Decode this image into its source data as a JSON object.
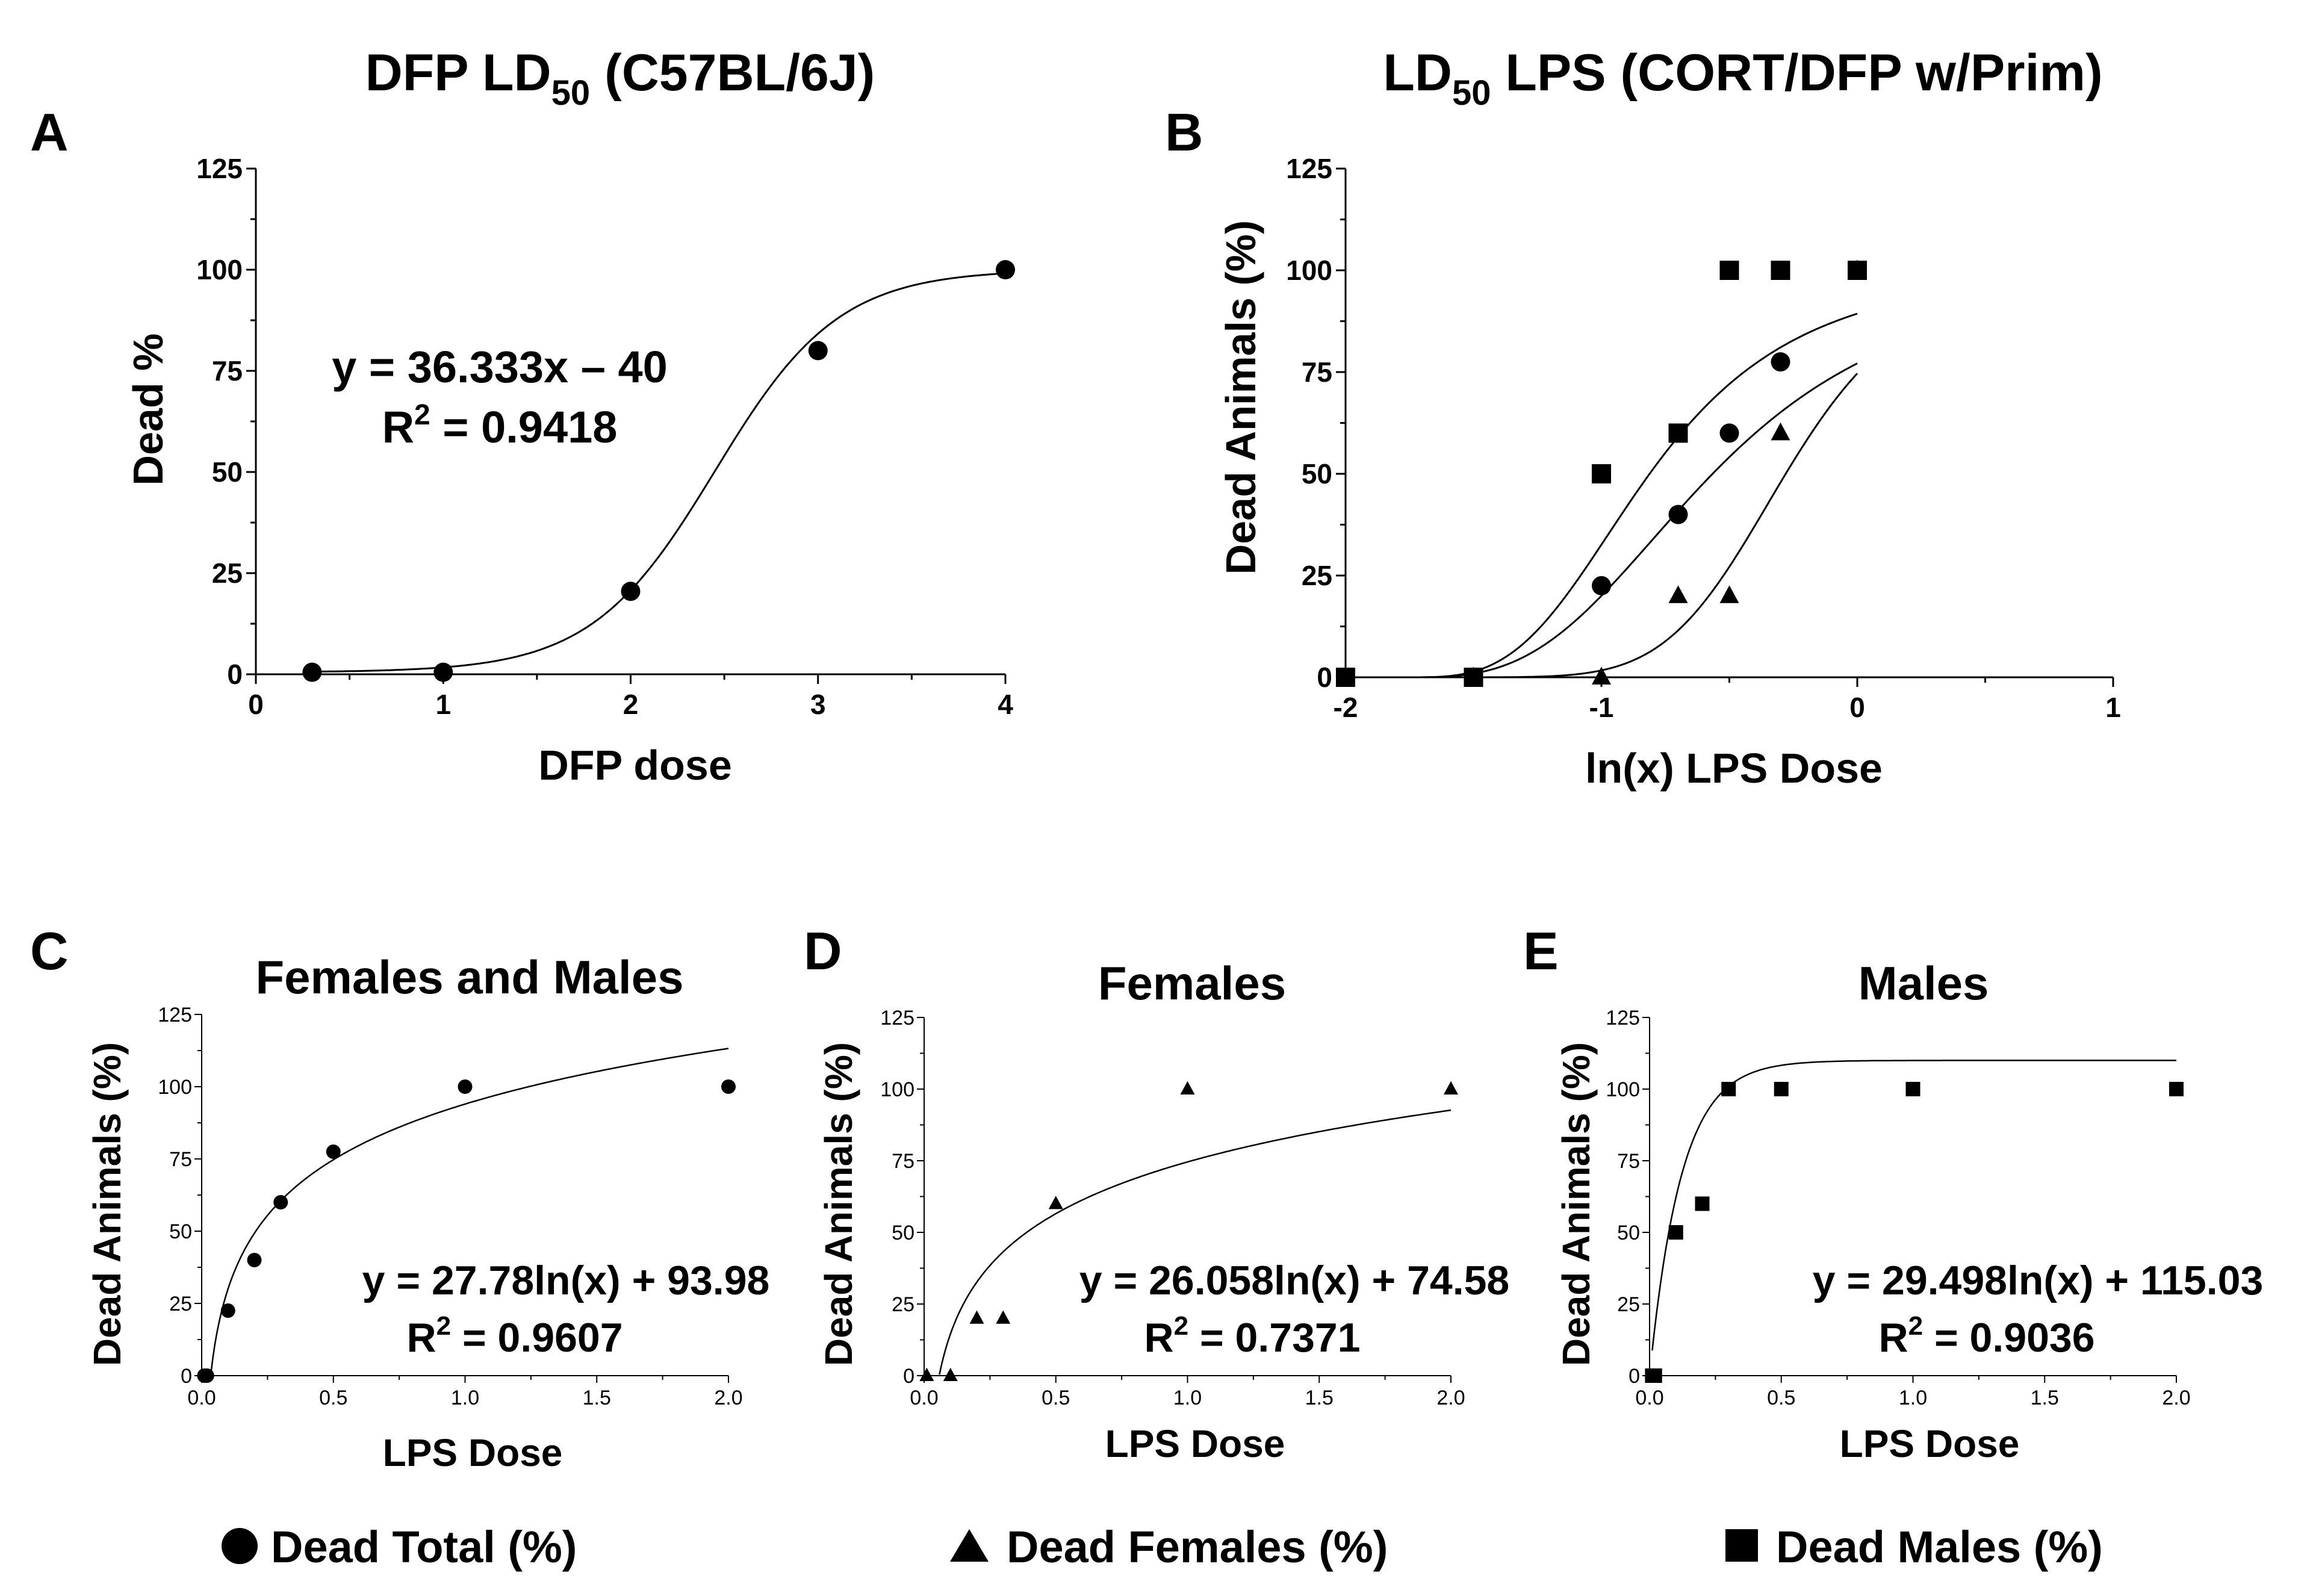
{
  "legend": [
    {
      "marker": "circle",
      "label": "Dead Total (%)"
    },
    {
      "marker": "triangle",
      "label": "Dead Females (%)"
    },
    {
      "marker": "square",
      "label": "Dead Males (%)"
    }
  ],
  "chart_data": [
    {
      "id": "A",
      "panel_letter": "A",
      "type": "scatter",
      "title_main": "DFP LD",
      "title_sub": "50",
      "title_rest": " (C57BL/6J)",
      "xlabel": "DFP dose",
      "ylabel": "Dead %",
      "xlim": [
        0,
        4
      ],
      "ylim": [
        0,
        125
      ],
      "xticks": [
        "0",
        "1",
        "2",
        "3",
        "4"
      ],
      "yticks": [
        "0",
        "25",
        "50",
        "75",
        "100",
        "125"
      ],
      "equation": "y = 36.333x – 40",
      "r2_label": "R",
      "r2_value": " = 0.9418",
      "series": [
        {
          "marker": "circle",
          "x": [
            0.3,
            1,
            2,
            3,
            4
          ],
          "y": [
            0.5,
            0.5,
            20.5,
            80,
            100
          ]
        }
      ]
    },
    {
      "id": "B",
      "panel_letter": "B",
      "type": "scatter",
      "title_main": "LD",
      "title_sub": "50",
      "title_rest": " LPS (CORT/DFP w/Prim)",
      "xlabel": "ln(x) LPS Dose",
      "ylabel": "Dead Animals (%)",
      "xlim": [
        -2,
        1
      ],
      "ylim": [
        0,
        125
      ],
      "xticks": [
        "-2",
        "-1",
        "0",
        "1"
      ],
      "yticks": [
        "0",
        "25",
        "50",
        "75",
        "100",
        "125"
      ],
      "series": [
        {
          "marker": "square",
          "x": [
            -2,
            -1.5,
            -1,
            -0.7,
            -0.5,
            -0.3,
            0
          ],
          "y": [
            0,
            0,
            50,
            60,
            100,
            100,
            100
          ]
        },
        {
          "marker": "circle",
          "x": [
            -2,
            -1.5,
            -1,
            -0.7,
            -0.5,
            -0.3,
            0
          ],
          "y": [
            0,
            0,
            22.5,
            40,
            60,
            77.5,
            100
          ]
        },
        {
          "marker": "triangle",
          "x": [
            -2,
            -1.5,
            -1,
            -0.7,
            -0.5,
            -0.3,
            0
          ],
          "y": [
            0,
            0,
            0,
            20,
            20,
            60,
            100
          ]
        }
      ]
    },
    {
      "id": "C",
      "panel_letter": "C",
      "type": "scatter",
      "title": "Females and Males",
      "xlabel": "LPS Dose",
      "ylabel": "Dead Animals (%)",
      "xlim": [
        0,
        2
      ],
      "ylim": [
        0,
        125
      ],
      "xticks": [
        "0.0",
        "0.5",
        "1.0",
        "1.5",
        "2.0"
      ],
      "yticks": [
        "0",
        "25",
        "50",
        "75",
        "100",
        "125"
      ],
      "equation": "y = 27.78ln(x) + 93.98",
      "r2_label": "R",
      "r2_value": " = 0.9607",
      "series": [
        {
          "marker": "circle",
          "x": [
            0.01,
            0.02,
            0.1,
            0.2,
            0.3,
            0.5,
            1,
            2
          ],
          "y": [
            0,
            0,
            22.5,
            40,
            60,
            77.5,
            100,
            100
          ]
        }
      ]
    },
    {
      "id": "D",
      "panel_letter": "D",
      "type": "scatter",
      "title": "Females",
      "xlabel": "LPS Dose",
      "ylabel": "Dead Animals (%)",
      "xlim": [
        0,
        2
      ],
      "ylim": [
        0,
        125
      ],
      "xticks": [
        "0.0",
        "0.5",
        "1.0",
        "1.5",
        "2.0"
      ],
      "yticks": [
        "0",
        "25",
        "50",
        "75",
        "100",
        "125"
      ],
      "equation": "y = 26.058ln(x) + 74.58",
      "r2_label": "R",
      "r2_value": " = 0.7371",
      "series": [
        {
          "marker": "triangle",
          "x": [
            0.01,
            0.1,
            0.2,
            0.3,
            0.5,
            1,
            2
          ],
          "y": [
            0,
            0,
            20,
            20,
            60,
            100,
            100
          ]
        }
      ]
    },
    {
      "id": "E",
      "panel_letter": "E",
      "type": "scatter",
      "title": "Males",
      "xlabel": "LPS Dose",
      "ylabel": "Dead Animals (%)",
      "xlim": [
        0,
        2
      ],
      "ylim": [
        0,
        125
      ],
      "xticks": [
        "0.0",
        "0.5",
        "1.0",
        "1.5",
        "2.0"
      ],
      "yticks": [
        "0",
        "25",
        "50",
        "75",
        "100",
        "125"
      ],
      "equation": "y = 29.498ln(x) + 115.03",
      "r2_label": "R",
      "r2_value": " = 0.9036",
      "series": [
        {
          "marker": "square",
          "x": [
            0.01,
            0.02,
            0.1,
            0.2,
            0.3,
            0.5,
            1,
            2
          ],
          "y": [
            0,
            0,
            50,
            60,
            100,
            100,
            100,
            100
          ]
        }
      ]
    }
  ]
}
